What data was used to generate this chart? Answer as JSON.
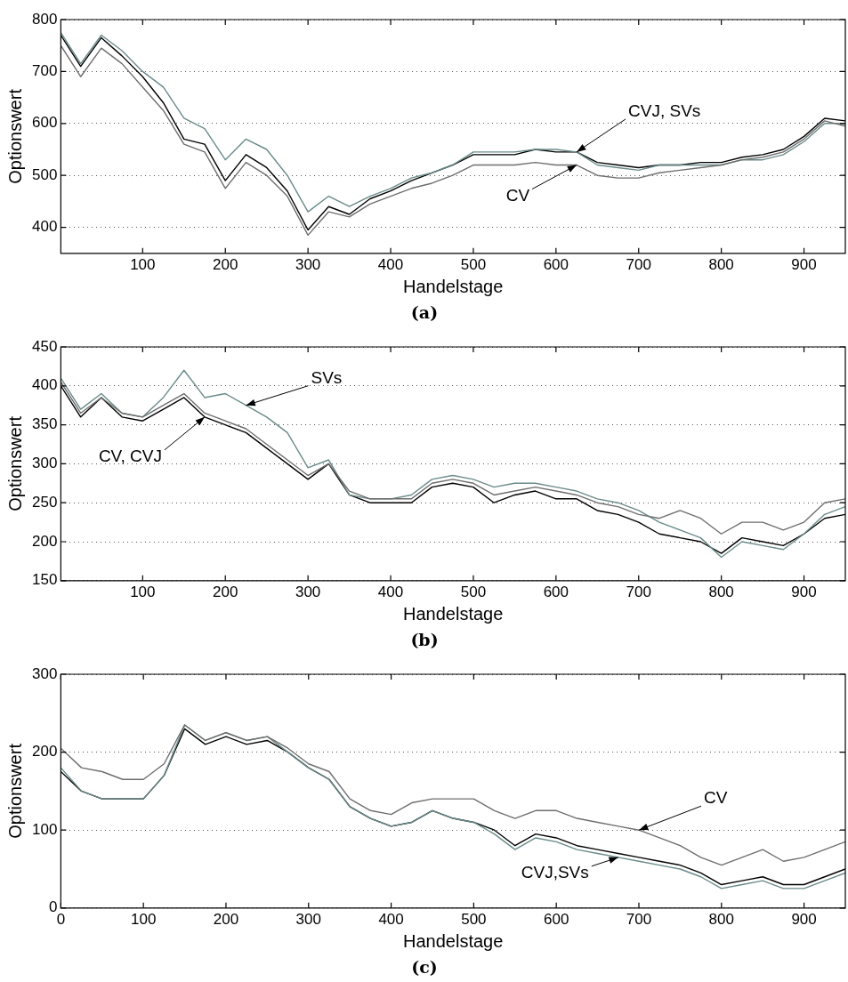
{
  "chart_data": [
    {
      "type": "line",
      "title": "(a)",
      "xlabel": "Handelstage",
      "ylabel": "Optionswert",
      "xlim": [
        1,
        950
      ],
      "xticks": [
        100,
        200,
        300,
        400,
        500,
        600,
        700,
        800,
        900
      ],
      "ylim": [
        350,
        800
      ],
      "yticks": [
        400,
        500,
        600,
        700,
        800
      ],
      "grid": "y",
      "legend": false,
      "x": [
        1,
        25,
        50,
        75,
        100,
        125,
        150,
        175,
        200,
        225,
        250,
        275,
        300,
        325,
        350,
        375,
        400,
        425,
        450,
        475,
        500,
        525,
        550,
        575,
        600,
        625,
        650,
        675,
        700,
        725,
        750,
        775,
        800,
        825,
        850,
        875,
        900,
        925,
        950
      ],
      "series": [
        {
          "color": "#6e6e6e",
          "values": [
            750,
            690,
            745,
            715,
            670,
            625,
            560,
            545,
            475,
            525,
            500,
            460,
            385,
            430,
            420,
            445,
            460,
            475,
            485,
            500,
            520,
            520,
            520,
            525,
            520,
            520,
            500,
            495,
            495,
            505,
            510,
            515,
            520,
            530,
            535,
            545,
            570,
            605,
            595
          ]
        },
        {
          "color": "#6b8a8a",
          "values": [
            775,
            715,
            770,
            740,
            700,
            670,
            610,
            590,
            530,
            570,
            550,
            500,
            430,
            460,
            440,
            460,
            475,
            495,
            505,
            520,
            545,
            545,
            545,
            550,
            550,
            545,
            520,
            515,
            510,
            520,
            520,
            520,
            520,
            530,
            530,
            540,
            565,
            600,
            600
          ]
        },
        {
          "color": "#000000",
          "values": [
            770,
            710,
            765,
            730,
            690,
            640,
            570,
            560,
            490,
            540,
            515,
            470,
            395,
            440,
            425,
            455,
            470,
            490,
            505,
            520,
            540,
            540,
            540,
            550,
            545,
            545,
            525,
            520,
            515,
            520,
            520,
            525,
            525,
            535,
            540,
            550,
            575,
            610,
            605
          ]
        }
      ],
      "annotations": [
        {
          "text": "CVJ, SVs",
          "x": 625,
          "y": 545
        },
        {
          "text": "CV",
          "x": 625,
          "y": 520
        }
      ]
    },
    {
      "type": "line",
      "title": "(b)",
      "xlabel": "Handelstage",
      "ylabel": "Optionswert",
      "xlim": [
        1,
        950
      ],
      "xticks": [
        100,
        200,
        300,
        400,
        500,
        600,
        700,
        800,
        900
      ],
      "ylim": [
        150,
        450
      ],
      "yticks": [
        150,
        200,
        250,
        300,
        350,
        400,
        450
      ],
      "grid": "y",
      "legend": false,
      "x": [
        1,
        25,
        50,
        75,
        100,
        125,
        150,
        175,
        200,
        225,
        250,
        275,
        300,
        325,
        350,
        375,
        400,
        425,
        450,
        475,
        500,
        525,
        550,
        575,
        600,
        625,
        650,
        675,
        700,
        725,
        750,
        775,
        800,
        825,
        850,
        875,
        900,
        925,
        950
      ],
      "series": [
        {
          "color": "#6e6e6e",
          "values": [
            405,
            365,
            385,
            365,
            360,
            375,
            390,
            365,
            355,
            345,
            325,
            305,
            285,
            300,
            265,
            255,
            255,
            255,
            275,
            280,
            275,
            260,
            265,
            270,
            265,
            260,
            250,
            245,
            235,
            230,
            240,
            230,
            210,
            225,
            225,
            215,
            225,
            250,
            255
          ]
        },
        {
          "color": "#6b8a8a",
          "values": [
            410,
            370,
            390,
            365,
            360,
            385,
            420,
            385,
            390,
            375,
            360,
            340,
            295,
            305,
            260,
            255,
            255,
            260,
            280,
            285,
            280,
            270,
            275,
            275,
            270,
            265,
            255,
            250,
            240,
            225,
            215,
            205,
            180,
            200,
            195,
            190,
            210,
            235,
            245
          ]
        },
        {
          "color": "#000000",
          "values": [
            400,
            360,
            385,
            360,
            355,
            370,
            385,
            360,
            350,
            340,
            320,
            300,
            280,
            300,
            260,
            250,
            250,
            250,
            270,
            275,
            270,
            250,
            260,
            265,
            255,
            255,
            240,
            235,
            225,
            210,
            205,
            200,
            185,
            205,
            200,
            195,
            210,
            230,
            235
          ]
        }
      ],
      "annotations": [
        {
          "text": "SVs",
          "x": 225,
          "y": 375
        },
        {
          "text": "CV, CVJ",
          "x": 175,
          "y": 360
        }
      ]
    },
    {
      "type": "line",
      "title": "(c)",
      "xlabel": "Handelstage",
      "ylabel": "Optionswert",
      "xlim": [
        0,
        950
      ],
      "xticks": [
        0,
        100,
        200,
        300,
        400,
        500,
        600,
        700,
        800,
        900
      ],
      "ylim": [
        0,
        300
      ],
      "yticks": [
        0,
        100,
        200,
        300
      ],
      "grid": "y",
      "legend": false,
      "x": [
        0,
        25,
        50,
        75,
        100,
        125,
        150,
        175,
        200,
        225,
        250,
        275,
        300,
        325,
        350,
        375,
        400,
        425,
        450,
        475,
        500,
        525,
        550,
        575,
        600,
        625,
        650,
        675,
        700,
        725,
        750,
        775,
        800,
        825,
        850,
        875,
        900,
        925,
        950
      ],
      "series": [
        {
          "color": "#6e6e6e",
          "values": [
            205,
            180,
            175,
            165,
            165,
            185,
            235,
            215,
            225,
            215,
            220,
            205,
            185,
            175,
            140,
            125,
            120,
            135,
            140,
            140,
            140,
            125,
            115,
            125,
            125,
            115,
            110,
            105,
            100,
            90,
            80,
            65,
            55,
            65,
            75,
            60,
            65,
            75,
            85
          ]
        },
        {
          "color": "#6b8a8a",
          "values": [
            180,
            150,
            140,
            140,
            140,
            170,
            235,
            215,
            225,
            215,
            220,
            200,
            180,
            165,
            130,
            115,
            105,
            110,
            125,
            115,
            110,
            95,
            75,
            90,
            85,
            75,
            70,
            65,
            60,
            55,
            50,
            40,
            25,
            30,
            35,
            25,
            25,
            35,
            45
          ]
        },
        {
          "color": "#000000",
          "values": [
            175,
            150,
            140,
            140,
            140,
            170,
            230,
            210,
            220,
            210,
            215,
            200,
            180,
            165,
            130,
            115,
            105,
            110,
            125,
            115,
            110,
            100,
            80,
            95,
            90,
            80,
            75,
            70,
            65,
            60,
            55,
            45,
            30,
            35,
            40,
            30,
            30,
            40,
            50
          ]
        }
      ],
      "annotations": [
        {
          "text": "CV",
          "x": 700,
          "y": 100
        },
        {
          "text": "CVJ,SVs",
          "x": 675,
          "y": 65
        }
      ]
    }
  ]
}
